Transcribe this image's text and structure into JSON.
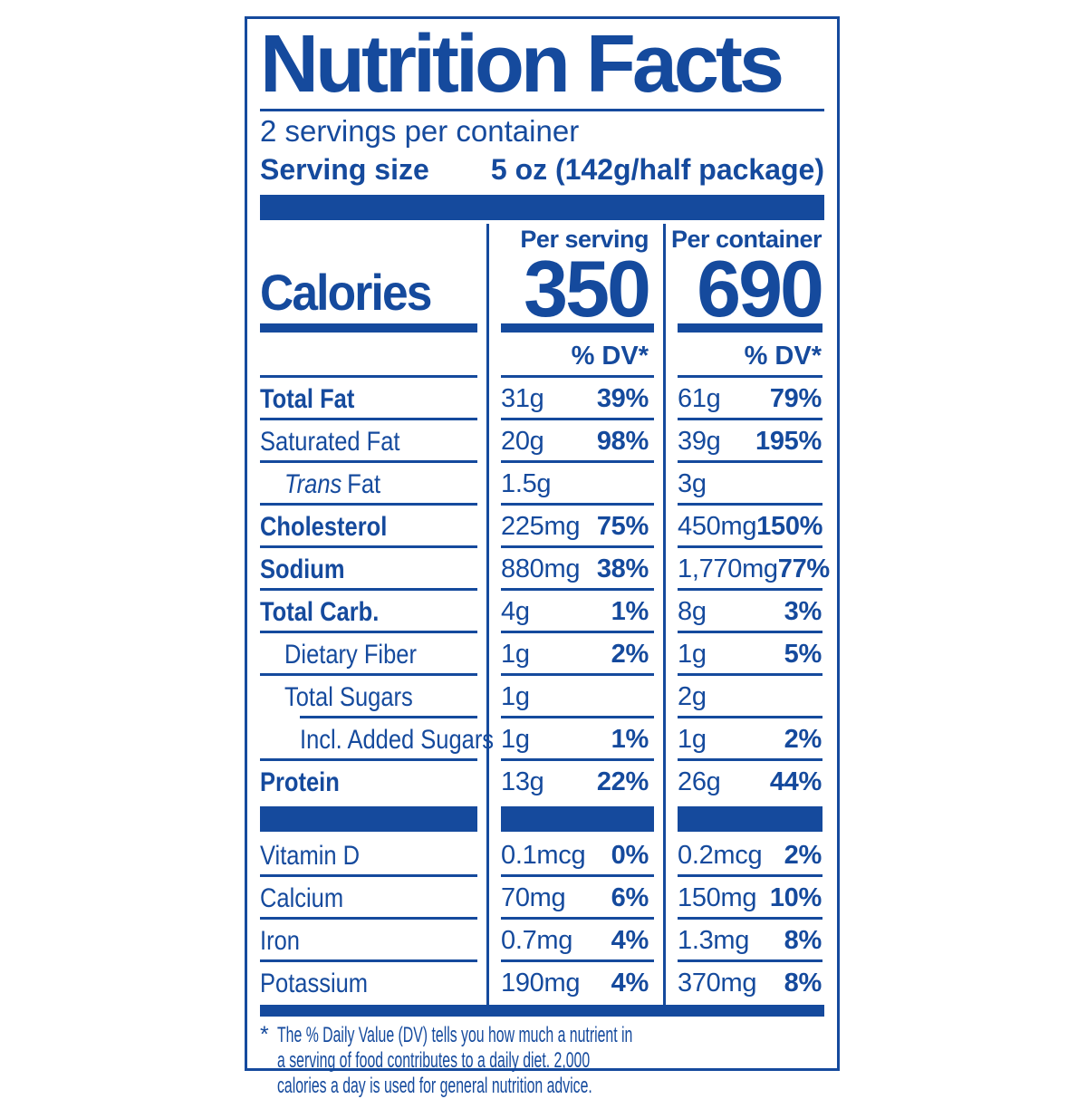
{
  "colors": {
    "blue": "#154a9d"
  },
  "label": {
    "title": "Nutrition Facts",
    "servings_per_container": "2 servings per container",
    "serving_size_label": "Serving size",
    "serving_size_value": "5 oz (142g/half package)",
    "calories": {
      "label": "Calories",
      "per_serving_header": "Per serving",
      "per_container_header": "Per container",
      "per_serving_value": "350",
      "per_container_value": "690",
      "dv_header_serving": "% DV*",
      "dv_header_container": "% DV*"
    },
    "nutrients": [
      {
        "name": "Total Fat",
        "serving_amount": "31g",
        "serving_dv": "39%",
        "container_amount": "61g",
        "container_dv": "79%"
      },
      {
        "name": "Saturated Fat",
        "serving_amount": "20g",
        "serving_dv": "98%",
        "container_amount": "39g",
        "container_dv": "195%"
      },
      {
        "name_italic": "Trans",
        "name": "Fat",
        "serving_amount": "1.5g",
        "container_amount": "3g"
      },
      {
        "name": "Cholesterol",
        "serving_amount": "225mg",
        "serving_dv": "75%",
        "container_amount": "450mg",
        "container_dv": "150%"
      },
      {
        "name": "Sodium",
        "serving_amount": "880mg",
        "serving_dv": "38%",
        "container_amount": "1,770mg",
        "container_dv": "77%"
      },
      {
        "name": "Total Carb.",
        "serving_amount": "4g",
        "serving_dv": "1%",
        "container_amount": "8g",
        "container_dv": "3%"
      },
      {
        "name": "Dietary Fiber",
        "serving_amount": "1g",
        "serving_dv": "2%",
        "container_amount": "1g",
        "container_dv": "5%"
      },
      {
        "name": "Total Sugars",
        "serving_amount": "1g",
        "container_amount": "2g"
      },
      {
        "name": "Incl. Added Sugars",
        "serving_amount": "1g",
        "serving_dv": "1%",
        "container_amount": "1g",
        "container_dv": "2%"
      },
      {
        "name": "Protein",
        "serving_amount": "13g",
        "serving_dv": "22%",
        "container_amount": "26g",
        "container_dv": "44%"
      }
    ],
    "vitamins": [
      {
        "name": "Vitamin D",
        "serving_amount": "0.1mcg",
        "serving_dv": "0%",
        "container_amount": "0.2mcg",
        "container_dv": "2%"
      },
      {
        "name": "Calcium",
        "serving_amount": "70mg",
        "serving_dv": "6%",
        "container_amount": "150mg",
        "container_dv": "10%"
      },
      {
        "name": "Iron",
        "serving_amount": "0.7mg",
        "serving_dv": "4%",
        "container_amount": "1.3mg",
        "container_dv": "8%"
      },
      {
        "name": "Potassium",
        "serving_amount": "190mg",
        "serving_dv": "4%",
        "container_amount": "370mg",
        "container_dv": "8%"
      }
    ],
    "footnote_marker": "*",
    "footnote": "The % Daily Value (DV) tells you how much a nutrient in a serving of food contributes to a daily diet. 2,000 calories a day is used for general nutrition advice."
  }
}
